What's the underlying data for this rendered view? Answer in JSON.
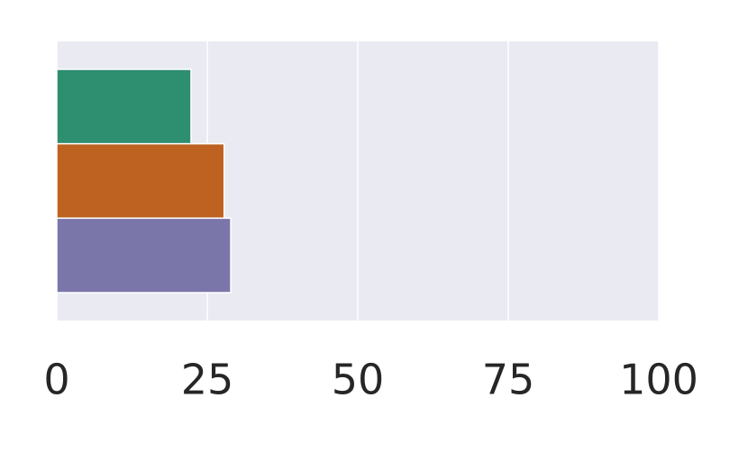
{
  "chart_data": {
    "type": "barh",
    "categories": [
      null,
      null,
      null
    ],
    "values": [
      22.3,
      27.8,
      28.9
    ],
    "colors": [
      "#2e8e70",
      "#bd6220",
      "#7b76aa"
    ],
    "xlim": [
      0,
      100
    ],
    "xticks": [
      0,
      25,
      50,
      75,
      100
    ],
    "grid": true
  }
}
